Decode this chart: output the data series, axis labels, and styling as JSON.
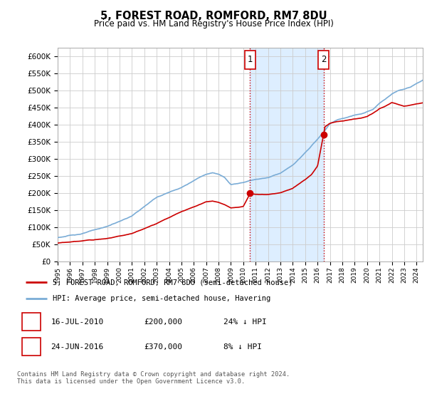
{
  "title": "5, FOREST ROAD, ROMFORD, RM7 8DU",
  "subtitle": "Price paid vs. HM Land Registry's House Price Index (HPI)",
  "ylabel_ticks": [
    0,
    50000,
    100000,
    150000,
    200000,
    250000,
    300000,
    350000,
    400000,
    450000,
    500000,
    550000,
    600000
  ],
  "ylim": [
    0,
    625000
  ],
  "xlim_start": 1995.0,
  "xlim_end": 2024.5,
  "transaction1_x": 2010.54,
  "transaction1_y": 200000,
  "transaction2_x": 2016.48,
  "transaction2_y": 370000,
  "legend_line1": "5, FOREST ROAD, ROMFORD, RM7 8DU (semi-detached house)",
  "legend_line2": "HPI: Average price, semi-detached house, Havering",
  "table_row1_num": "1",
  "table_row1_date": "16-JUL-2010",
  "table_row1_price": "£200,000",
  "table_row1_hpi": "24% ↓ HPI",
  "table_row2_num": "2",
  "table_row2_date": "24-JUN-2016",
  "table_row2_price": "£370,000",
  "table_row2_hpi": "8% ↓ HPI",
  "footer": "Contains HM Land Registry data © Crown copyright and database right 2024.\nThis data is licensed under the Open Government Licence v3.0.",
  "red_color": "#cc0000",
  "blue_color": "#7aacd6",
  "shade_color": "#ddeeff",
  "grid_color": "#cccccc",
  "bg_color": "#ffffff",
  "box_color": "#cc0000",
  "hpi_breakpoints": [
    1995,
    1997,
    1999,
    2001,
    2003,
    2005,
    2007,
    2007.5,
    2008,
    2008.5,
    2009,
    2009.5,
    2010,
    2010.5,
    2011,
    2012,
    2013,
    2014,
    2015,
    2016,
    2016.5,
    2017,
    2017.5,
    2018,
    2018.5,
    2019,
    2019.5,
    2020,
    2020.5,
    2021,
    2021.5,
    2022,
    2022.5,
    2023,
    2023.5,
    2024,
    2024.5
  ],
  "hpi_values": [
    68000,
    80000,
    100000,
    130000,
    185000,
    215000,
    255000,
    260000,
    255000,
    245000,
    225000,
    228000,
    232000,
    238000,
    242000,
    248000,
    262000,
    285000,
    320000,
    360000,
    380000,
    405000,
    415000,
    420000,
    425000,
    430000,
    432000,
    438000,
    445000,
    462000,
    475000,
    490000,
    500000,
    505000,
    510000,
    520000,
    530000
  ],
  "prop_breakpoints": [
    1995,
    1997,
    1999,
    2001,
    2003,
    2005,
    2007,
    2007.5,
    2008,
    2008.5,
    2009,
    2009.5,
    2010,
    2010.54,
    2011,
    2012,
    2013,
    2014,
    2015,
    2015.5,
    2016,
    2016.48,
    2016.6,
    2017,
    2017.5,
    2018,
    2018.5,
    2019,
    2019.5,
    2020,
    2020.5,
    2021,
    2021.5,
    2022,
    2022.5,
    2023,
    2023.5,
    2024,
    2024.5
  ],
  "prop_values": [
    50000,
    55000,
    65000,
    80000,
    110000,
    145000,
    175000,
    178000,
    175000,
    168000,
    158000,
    160000,
    163000,
    200000,
    198000,
    197000,
    202000,
    215000,
    240000,
    255000,
    280000,
    370000,
    395000,
    405000,
    410000,
    412000,
    415000,
    418000,
    420000,
    425000,
    435000,
    448000,
    455000,
    465000,
    460000,
    455000,
    458000,
    462000,
    465000
  ]
}
